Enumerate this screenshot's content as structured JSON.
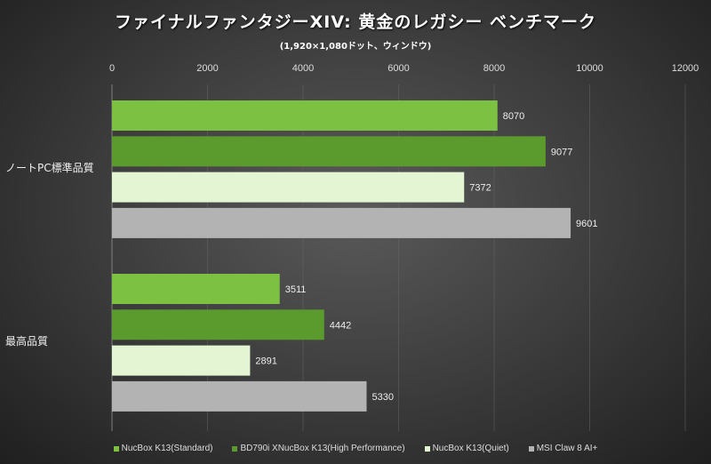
{
  "chart_data": {
    "type": "bar",
    "orientation": "horizontal",
    "title": "ファイナルファンタジーXIV: 黄金のレガシー ベンチマーク",
    "subtitle": "(1,920×1,080ドット、ウィンドウ)",
    "categories": [
      "ノートPC標準品質",
      "最高品質"
    ],
    "series": [
      {
        "name": "NucBox K13(Standard)",
        "color": "#7dc142",
        "values": [
          8070,
          3511
        ]
      },
      {
        "name": "BD790i XNucBox K13(High Performance)",
        "color": "#5b9a2c",
        "values": [
          9077,
          4442
        ]
      },
      {
        "name": "NucBox K13(Quiet)",
        "color": "#e4f5d4",
        "values": [
          7372,
          2891
        ]
      },
      {
        "name": "MSI Claw 8 AI+",
        "color": "#b3b3b3",
        "values": [
          9601,
          5330
        ]
      }
    ],
    "xlim": [
      0,
      12000
    ],
    "xticks": [
      0,
      2000,
      4000,
      6000,
      8000,
      10000,
      12000
    ],
    "grid": true,
    "legend": "bottom"
  }
}
